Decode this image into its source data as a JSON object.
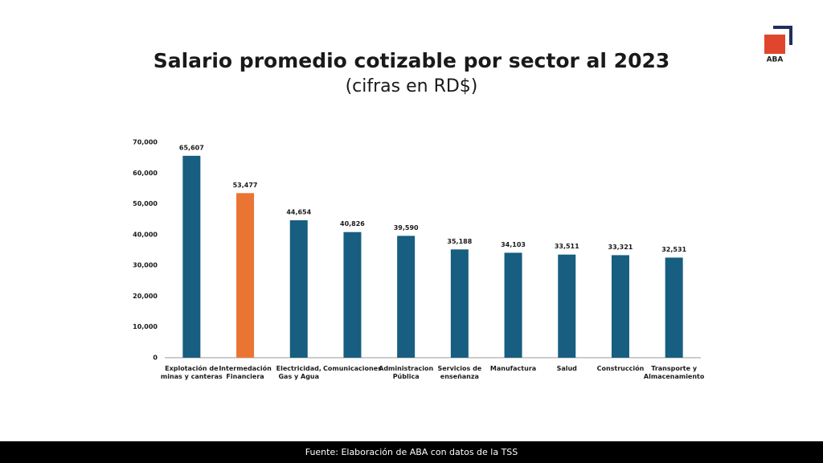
{
  "chart_data": {
    "type": "bar",
    "title": "Salario promedio cotizable por sector al 2023",
    "subtitle": "(cifras en RD$)",
    "categories": [
      "Explotación de\nminas y canteras",
      "Intermedación\nFinanciera",
      "Electricidad,\nGas y Agua",
      "Comunicaciones",
      "Administracion\nPública",
      "Servicios de\nenseñanza",
      "Manufactura",
      "Salud",
      "Construcción",
      "Transporte y\nAlmacenamiento"
    ],
    "values": [
      65607,
      53477,
      44654,
      40826,
      39590,
      35188,
      34103,
      33511,
      33321,
      32531
    ],
    "value_labels": [
      "65,607",
      "53,477",
      "44,654",
      "40,826",
      "39,590",
      "35,188",
      "34,103",
      "33,511",
      "33,321",
      "32,531"
    ],
    "colors": [
      "#175e80",
      "#ea7533",
      "#175e80",
      "#175e80",
      "#175e80",
      "#175e80",
      "#175e80",
      "#175e80",
      "#175e80",
      "#175e80"
    ],
    "ylim": [
      0,
      70000
    ],
    "yticks": [
      0,
      {
        "value": 10000,
        "label": "10,000"
      },
      {
        "value": 20000,
        "label": "20,000"
      },
      {
        "value": 30000,
        "label": "30,000"
      },
      {
        "value": 40000,
        "label": "40,000"
      },
      {
        "value": 50000,
        "label": "50,000"
      },
      {
        "value": 60000,
        "label": "60,000"
      },
      {
        "value": 70000,
        "label": "70,000"
      }
    ],
    "grid": false
  },
  "source": "Fuente: Elaboración de ABA con datos de la TSS",
  "logo": "ABA"
}
